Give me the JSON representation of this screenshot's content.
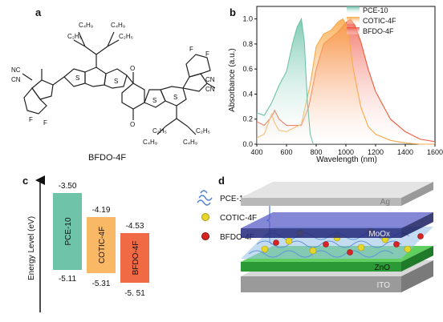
{
  "panels": {
    "a": "a",
    "b": "b",
    "c": "c",
    "d": "d"
  },
  "molecule": {
    "caption": "BFDO-4F",
    "labels": {
      "c4h9": "C₄H₉",
      "c2h5": "C₂H₅",
      "nc": "NC",
      "cn": "CN",
      "f": "F",
      "s": "S",
      "o": "O"
    }
  },
  "colors": {
    "pce10": "#6fc3a8",
    "cotic": "#f9a94b",
    "bfdo": "#ef5a3a",
    "mo": "#2b2f8f",
    "ag": "#bdbdbd",
    "zno": "#3db54a",
    "ito": "#8c8c8c"
  },
  "chart_data": {
    "type": "area",
    "xlabel": "Wavelength (nm)",
    "ylabel": "Absorbance (a.u.)",
    "xlim": [
      400,
      1600
    ],
    "ylim": [
      0,
      1.1
    ],
    "xticks": [
      "400",
      "600",
      "800",
      "1000",
      "1200",
      "1400",
      "1600"
    ],
    "yticks": [
      "0.0",
      "0.2",
      "0.4",
      "0.6",
      "0.8",
      "1.0"
    ],
    "legend_position": "top-right",
    "series": [
      {
        "name": "PCE-10",
        "x": [
          400,
          450,
          500,
          550,
          600,
          640,
          670,
          700,
          720,
          740,
          760,
          780
        ],
        "y": [
          0.25,
          0.23,
          0.33,
          0.47,
          0.58,
          0.8,
          0.93,
          1.0,
          0.82,
          0.35,
          0.08,
          0.0
        ]
      },
      {
        "name": "COTIC-4F",
        "x": [
          400,
          450,
          500,
          520,
          550,
          600,
          700,
          760,
          800,
          850,
          900,
          950,
          980,
          1000,
          1020,
          1050,
          1100,
          1150,
          1200,
          1300,
          1400,
          1500,
          1600
        ],
        "y": [
          0.05,
          0.08,
          0.24,
          0.17,
          0.11,
          0.1,
          0.16,
          0.48,
          0.78,
          0.88,
          0.91,
          0.98,
          1.0,
          0.96,
          0.85,
          0.6,
          0.3,
          0.14,
          0.08,
          0.03,
          0.01,
          0.0,
          0.0
        ]
      },
      {
        "name": "BFDO-4F",
        "x": [
          400,
          450,
          500,
          520,
          550,
          600,
          700,
          750,
          800,
          850,
          900,
          950,
          1000,
          1030,
          1060,
          1100,
          1150,
          1200,
          1300,
          1400,
          1500,
          1600
        ],
        "y": [
          0.18,
          0.15,
          0.22,
          0.27,
          0.2,
          0.15,
          0.15,
          0.3,
          0.6,
          0.8,
          0.85,
          0.9,
          0.97,
          1.0,
          0.95,
          0.82,
          0.6,
          0.42,
          0.2,
          0.1,
          0.04,
          0.02
        ]
      }
    ]
  },
  "energy": {
    "ylabel": "Energy Level (eV)",
    "bars": [
      {
        "name": "PCE-10",
        "lumo": "-3.50",
        "homo": "-5.11"
      },
      {
        "name": "COTIC-4F",
        "lumo": "-4.19",
        "homo": "-5.31"
      },
      {
        "name": "BFDO-4F",
        "lumo": "-4.53",
        "homo": "-5. 51"
      }
    ]
  },
  "device": {
    "legend": [
      "PCE-10",
      "COTIC-4F",
      "BFDO-4F"
    ],
    "layers": [
      "Ag",
      "MoOx",
      "ZnO",
      "ITO"
    ]
  }
}
